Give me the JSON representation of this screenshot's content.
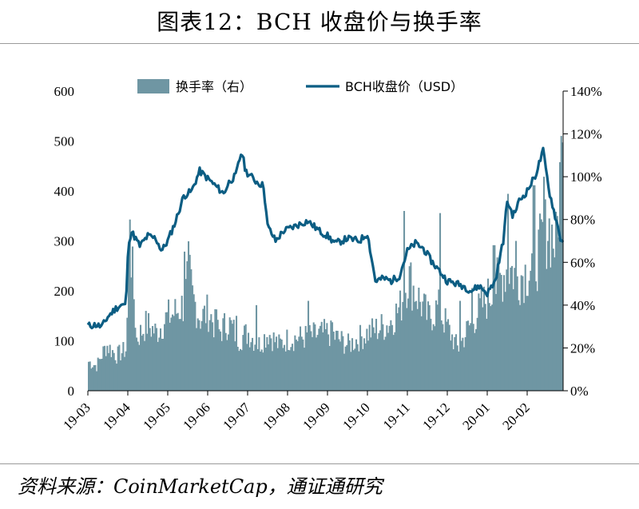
{
  "page": {
    "title": "图表12：BCH 收盘价与换手率",
    "source": "资料来源：CoinMarketCap，通证通研究"
  },
  "chart_data": {
    "type": "bar+line",
    "x_tick_labels": [
      "19-03",
      "19-04",
      "19-05",
      "19-06",
      "19-07",
      "19-08",
      "19-09",
      "19-10",
      "19-11",
      "19-12",
      "20-01",
      "20-02"
    ],
    "left_axis": {
      "ylim": [
        0,
        600
      ],
      "ticks": [
        "0",
        "100",
        "200",
        "300",
        "400",
        "500",
        "600"
      ]
    },
    "right_axis": {
      "ylim": [
        0,
        140
      ],
      "ticks": [
        "0%",
        "20%",
        "40%",
        "60%",
        "80%",
        "100%",
        "120%",
        "140%"
      ]
    },
    "grid": false,
    "legend_placement": "top",
    "colors": {
      "bar": "#6f96a3",
      "line": "#0b5d83"
    },
    "series": [
      {
        "name": "换手率（右）",
        "kind": "bar",
        "axis": "right",
        "unit": "%",
        "month_points": [
          {
            "m": 0.0,
            "v": 14
          },
          {
            "m": 0.2,
            "v": 12
          },
          {
            "m": 0.45,
            "v": 22
          },
          {
            "m": 0.7,
            "v": 17
          },
          {
            "m": 0.95,
            "v": 20
          },
          {
            "m": 1.02,
            "v": 80
          },
          {
            "m": 1.2,
            "v": 25
          },
          {
            "m": 1.45,
            "v": 32
          },
          {
            "m": 1.7,
            "v": 28
          },
          {
            "m": 1.95,
            "v": 35
          },
          {
            "m": 2.2,
            "v": 38
          },
          {
            "m": 2.4,
            "v": 42
          },
          {
            "m": 2.5,
            "v": 58
          },
          {
            "m": 2.6,
            "v": 45
          },
          {
            "m": 2.8,
            "v": 35
          },
          {
            "m": 3.0,
            "v": 38
          },
          {
            "m": 3.25,
            "v": 28
          },
          {
            "m": 3.5,
            "v": 33
          },
          {
            "m": 3.75,
            "v": 25
          },
          {
            "m": 4.0,
            "v": 28
          },
          {
            "m": 4.25,
            "v": 22
          },
          {
            "m": 4.5,
            "v": 28
          },
          {
            "m": 4.75,
            "v": 22
          },
          {
            "m": 5.0,
            "v": 25
          },
          {
            "m": 5.5,
            "v": 26
          },
          {
            "m": 6.0,
            "v": 28
          },
          {
            "m": 6.5,
            "v": 22
          },
          {
            "m": 7.0,
            "v": 28
          },
          {
            "m": 7.5,
            "v": 32
          },
          {
            "m": 7.8,
            "v": 40
          },
          {
            "m": 8.0,
            "v": 55
          },
          {
            "m": 8.25,
            "v": 45
          },
          {
            "m": 8.5,
            "v": 35
          },
          {
            "m": 8.75,
            "v": 40
          },
          {
            "m": 9.0,
            "v": 30
          },
          {
            "m": 9.25,
            "v": 20
          },
          {
            "m": 9.5,
            "v": 30
          },
          {
            "m": 9.75,
            "v": 38
          },
          {
            "m": 10.0,
            "v": 45
          },
          {
            "m": 10.25,
            "v": 52
          },
          {
            "m": 10.5,
            "v": 60
          },
          {
            "m": 10.75,
            "v": 55
          },
          {
            "m": 11.0,
            "v": 58
          },
          {
            "m": 11.25,
            "v": 65
          },
          {
            "m": 11.5,
            "v": 80
          },
          {
            "m": 11.7,
            "v": 70
          },
          {
            "m": 11.85,
            "v": 116
          }
        ],
        "spikes": [
          {
            "m": 1.02,
            "v": 80
          },
          {
            "m": 2.4,
            "v": 65
          },
          {
            "m": 2.5,
            "v": 58
          },
          {
            "m": 3.2,
            "v": 38
          },
          {
            "m": 3.7,
            "v": 35
          },
          {
            "m": 4.2,
            "v": 40
          },
          {
            "m": 5.5,
            "v": 42
          },
          {
            "m": 6.1,
            "v": 32
          },
          {
            "m": 7.9,
            "v": 84
          },
          {
            "m": 8.8,
            "v": 83
          },
          {
            "m": 9.3,
            "v": 42
          },
          {
            "m": 9.6,
            "v": 48
          },
          {
            "m": 10.15,
            "v": 68
          },
          {
            "m": 10.5,
            "v": 92
          },
          {
            "m": 10.7,
            "v": 70
          },
          {
            "m": 11.15,
            "v": 96
          },
          {
            "m": 11.4,
            "v": 100
          },
          {
            "m": 11.6,
            "v": 68
          },
          {
            "m": 11.85,
            "v": 116
          }
        ]
      },
      {
        "name": "BCH收盘价（USD）",
        "kind": "line",
        "axis": "left",
        "unit": "USD",
        "points": [
          {
            "m": 0.0,
            "v": 130
          },
          {
            "m": 0.2,
            "v": 132
          },
          {
            "m": 0.35,
            "v": 128
          },
          {
            "m": 0.5,
            "v": 148
          },
          {
            "m": 0.7,
            "v": 165
          },
          {
            "m": 0.85,
            "v": 172
          },
          {
            "m": 0.95,
            "v": 170
          },
          {
            "m": 1.02,
            "v": 300
          },
          {
            "m": 1.1,
            "v": 318
          },
          {
            "m": 1.3,
            "v": 290
          },
          {
            "m": 1.5,
            "v": 310
          },
          {
            "m": 1.7,
            "v": 305
          },
          {
            "m": 1.85,
            "v": 280
          },
          {
            "m": 2.0,
            "v": 300
          },
          {
            "m": 2.2,
            "v": 340
          },
          {
            "m": 2.4,
            "v": 390
          },
          {
            "m": 2.6,
            "v": 400
          },
          {
            "m": 2.8,
            "v": 440
          },
          {
            "m": 3.0,
            "v": 425
          },
          {
            "m": 3.2,
            "v": 410
          },
          {
            "m": 3.4,
            "v": 395
          },
          {
            "m": 3.55,
            "v": 420
          },
          {
            "m": 3.7,
            "v": 430
          },
          {
            "m": 3.85,
            "v": 480
          },
          {
            "m": 3.95,
            "v": 440
          },
          {
            "m": 4.2,
            "v": 420
          },
          {
            "m": 4.4,
            "v": 410
          },
          {
            "m": 4.5,
            "v": 330
          },
          {
            "m": 4.7,
            "v": 300
          },
          {
            "m": 4.9,
            "v": 320
          },
          {
            "m": 5.2,
            "v": 330
          },
          {
            "m": 5.5,
            "v": 340
          },
          {
            "m": 5.8,
            "v": 320
          },
          {
            "m": 6.0,
            "v": 310
          },
          {
            "m": 6.2,
            "v": 295
          },
          {
            "m": 6.5,
            "v": 305
          },
          {
            "m": 6.8,
            "v": 300
          },
          {
            "m": 7.0,
            "v": 315
          },
          {
            "m": 7.2,
            "v": 220
          },
          {
            "m": 7.4,
            "v": 225
          },
          {
            "m": 7.6,
            "v": 220
          },
          {
            "m": 7.8,
            "v": 230
          },
          {
            "m": 8.0,
            "v": 280
          },
          {
            "m": 8.2,
            "v": 295
          },
          {
            "m": 8.4,
            "v": 285
          },
          {
            "m": 8.6,
            "v": 260
          },
          {
            "m": 8.8,
            "v": 240
          },
          {
            "m": 9.0,
            "v": 220
          },
          {
            "m": 9.2,
            "v": 215
          },
          {
            "m": 9.4,
            "v": 210
          },
          {
            "m": 9.6,
            "v": 200
          },
          {
            "m": 9.8,
            "v": 210
          },
          {
            "m": 10.0,
            "v": 195
          },
          {
            "m": 10.2,
            "v": 220
          },
          {
            "m": 10.4,
            "v": 300
          },
          {
            "m": 10.5,
            "v": 380
          },
          {
            "m": 10.65,
            "v": 350
          },
          {
            "m": 10.8,
            "v": 380
          },
          {
            "m": 11.0,
            "v": 400
          },
          {
            "m": 11.2,
            "v": 430
          },
          {
            "m": 11.4,
            "v": 480
          },
          {
            "m": 11.55,
            "v": 400
          },
          {
            "m": 11.7,
            "v": 350
          },
          {
            "m": 11.85,
            "v": 300
          }
        ]
      }
    ]
  }
}
